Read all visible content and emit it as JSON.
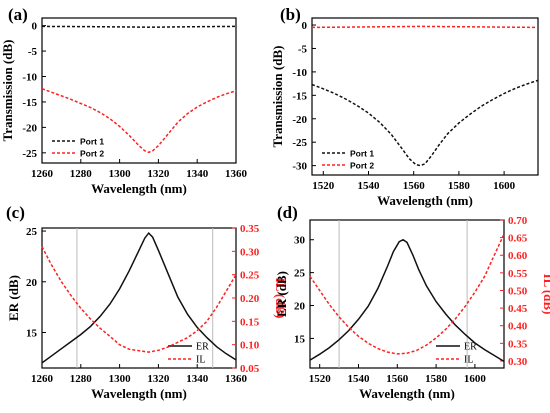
{
  "colors": {
    "black": "#111111",
    "red": "#ff2020",
    "guide": "#bbbbbb"
  },
  "chart_data": [
    {
      "panel": "(a)",
      "type": "line",
      "xlabel": "Wavelength (nm)",
      "ylabel": "Transmission (dB)",
      "xlim": [
        1260,
        1360
      ],
      "ylim": [
        -27,
        1.5
      ],
      "xticks": [
        1260,
        1280,
        1300,
        1320,
        1340,
        1360
      ],
      "yticks": [
        0,
        -5,
        -10,
        -15,
        -20,
        -25
      ],
      "legend_position": "bottom-left",
      "series": [
        {
          "name": "Port 1",
          "color": "#111111",
          "axis": "left",
          "dash": "3 2",
          "x": [
            1260,
            1280,
            1300,
            1315,
            1330,
            1345,
            1360
          ],
          "y": [
            -0.15,
            -0.2,
            -0.25,
            -0.3,
            -0.25,
            -0.2,
            -0.15
          ]
        },
        {
          "name": "Port 2",
          "color": "#ff2020",
          "axis": "left",
          "dash": "3 2",
          "x": [
            1260,
            1265,
            1270,
            1275,
            1280,
            1285,
            1290,
            1295,
            1300,
            1305,
            1310,
            1313,
            1315,
            1317,
            1320,
            1325,
            1330,
            1335,
            1340,
            1345,
            1350,
            1355,
            1360
          ],
          "y": [
            -12.4,
            -13.1,
            -13.8,
            -14.5,
            -15.3,
            -16.1,
            -17.1,
            -18.3,
            -19.8,
            -21.6,
            -23.6,
            -24.6,
            -24.9,
            -24.6,
            -23.6,
            -21.3,
            -19.0,
            -17.3,
            -16.0,
            -15.0,
            -14.1,
            -13.4,
            -12.8
          ]
        }
      ]
    },
    {
      "panel": "(b)",
      "type": "line",
      "xlabel": "Wavelength (nm)",
      "ylabel": "Transmission (dB)",
      "xlim": [
        1515,
        1615
      ],
      "ylim": [
        -32,
        1.5
      ],
      "xticks": [
        1520,
        1540,
        1560,
        1580,
        1600
      ],
      "yticks": [
        0,
        -5,
        -10,
        -15,
        -20,
        -25,
        -30
      ],
      "legend_position": "bottom-left",
      "series": [
        {
          "name": "Port 1",
          "color": "#111111",
          "axis": "left",
          "dash": "3 2",
          "x": [
            1515,
            1520,
            1525,
            1530,
            1535,
            1540,
            1545,
            1550,
            1555,
            1558,
            1561,
            1563,
            1565,
            1568,
            1571,
            1575,
            1580,
            1585,
            1590,
            1595,
            1600,
            1605,
            1610,
            1615
          ],
          "y": [
            -12.7,
            -13.6,
            -14.6,
            -15.8,
            -17.2,
            -18.8,
            -20.8,
            -23.3,
            -26.5,
            -28.5,
            -29.8,
            -30.0,
            -29.6,
            -27.8,
            -25.7,
            -23.2,
            -20.9,
            -19.0,
            -17.3,
            -15.9,
            -14.6,
            -13.5,
            -12.6,
            -11.8
          ]
        },
        {
          "name": "Port 2",
          "color": "#ff2020",
          "axis": "left",
          "dash": "3 2",
          "x": [
            1515,
            1540,
            1563,
            1590,
            1615
          ],
          "y": [
            -0.5,
            -0.4,
            -0.3,
            -0.4,
            -0.5
          ]
        }
      ]
    },
    {
      "panel": "(c)",
      "type": "line",
      "xlabel": "Wavelength (nm)",
      "ylabel": "ER (dB)",
      "ylabel_right": "IL (dB)",
      "xlim": [
        1260,
        1360
      ],
      "ylim": [
        11.5,
        25.3
      ],
      "ylim_right": [
        0.05,
        0.35
      ],
      "xticks": [
        1260,
        1280,
        1300,
        1320,
        1340,
        1360
      ],
      "yticks": [
        15,
        20,
        25
      ],
      "yticks_right": [
        0.05,
        0.1,
        0.15,
        0.2,
        0.25,
        0.3,
        0.35
      ],
      "guides_x": [
        1278,
        1348
      ],
      "legend_position": "bottom-right",
      "series": [
        {
          "name": "ER",
          "color": "#111111",
          "axis": "left",
          "dash": "none",
          "x": [
            1260,
            1265,
            1270,
            1275,
            1280,
            1285,
            1290,
            1295,
            1300,
            1305,
            1310,
            1313,
            1315,
            1317,
            1320,
            1325,
            1330,
            1335,
            1340,
            1345,
            1350,
            1355,
            1360
          ],
          "y": [
            12.0,
            12.7,
            13.4,
            14.1,
            14.8,
            15.6,
            16.6,
            17.8,
            19.3,
            21.1,
            23.1,
            24.3,
            24.8,
            24.4,
            23.1,
            20.8,
            18.5,
            16.8,
            15.5,
            14.5,
            13.6,
            12.9,
            12.3
          ]
        },
        {
          "name": "IL",
          "color": "#ff2020",
          "axis": "right",
          "dash": "3 2",
          "x": [
            1260,
            1265,
            1270,
            1275,
            1280,
            1285,
            1290,
            1295,
            1300,
            1305,
            1310,
            1315,
            1320,
            1325,
            1330,
            1335,
            1340,
            1345,
            1350,
            1355,
            1360
          ],
          "y": [
            0.31,
            0.27,
            0.235,
            0.205,
            0.178,
            0.155,
            0.135,
            0.118,
            0.1,
            0.09,
            0.087,
            0.084,
            0.088,
            0.095,
            0.105,
            0.115,
            0.13,
            0.15,
            0.18,
            0.215,
            0.25
          ]
        }
      ]
    },
    {
      "panel": "(d)",
      "type": "line",
      "xlabel": "Wavelength (nm)",
      "ylabel": "ER (dB)",
      "ylabel_right": "IL (dB)",
      "xlim": [
        1515,
        1615
      ],
      "ylim": [
        10.5,
        33
      ],
      "ylim_right": [
        0.28,
        0.7
      ],
      "xticks": [
        1520,
        1540,
        1560,
        1580,
        1600
      ],
      "yticks": [
        15,
        20,
        25,
        30
      ],
      "yticks_right": [
        0.3,
        0.35,
        0.4,
        0.45,
        0.5,
        0.55,
        0.6,
        0.65,
        0.7
      ],
      "guides_x": [
        1530,
        1596
      ],
      "legend_position": "bottom-right",
      "series": [
        {
          "name": "ER",
          "color": "#111111",
          "axis": "left",
          "dash": "none",
          "x": [
            1515,
            1520,
            1525,
            1530,
            1535,
            1540,
            1545,
            1550,
            1555,
            1558,
            1561,
            1563,
            1565,
            1568,
            1571,
            1575,
            1580,
            1585,
            1590,
            1595,
            1600,
            1605,
            1610,
            1615
          ],
          "y": [
            11.7,
            12.6,
            13.6,
            14.8,
            16.2,
            17.9,
            19.9,
            22.6,
            26.0,
            28.2,
            29.7,
            30.0,
            29.6,
            27.7,
            25.5,
            23.0,
            20.6,
            18.7,
            17.0,
            15.6,
            14.3,
            13.3,
            12.4,
            11.5
          ]
        },
        {
          "name": "IL",
          "color": "#ff2020",
          "axis": "right",
          "dash": "3 2",
          "x": [
            1515,
            1520,
            1525,
            1530,
            1535,
            1540,
            1545,
            1550,
            1555,
            1560,
            1565,
            1570,
            1575,
            1580,
            1585,
            1590,
            1595,
            1600,
            1605,
            1610,
            1615
          ],
          "y": [
            0.54,
            0.5,
            0.46,
            0.425,
            0.395,
            0.37,
            0.35,
            0.335,
            0.325,
            0.32,
            0.322,
            0.33,
            0.345,
            0.365,
            0.39,
            0.42,
            0.455,
            0.495,
            0.54,
            0.6,
            0.66
          ]
        }
      ]
    }
  ]
}
